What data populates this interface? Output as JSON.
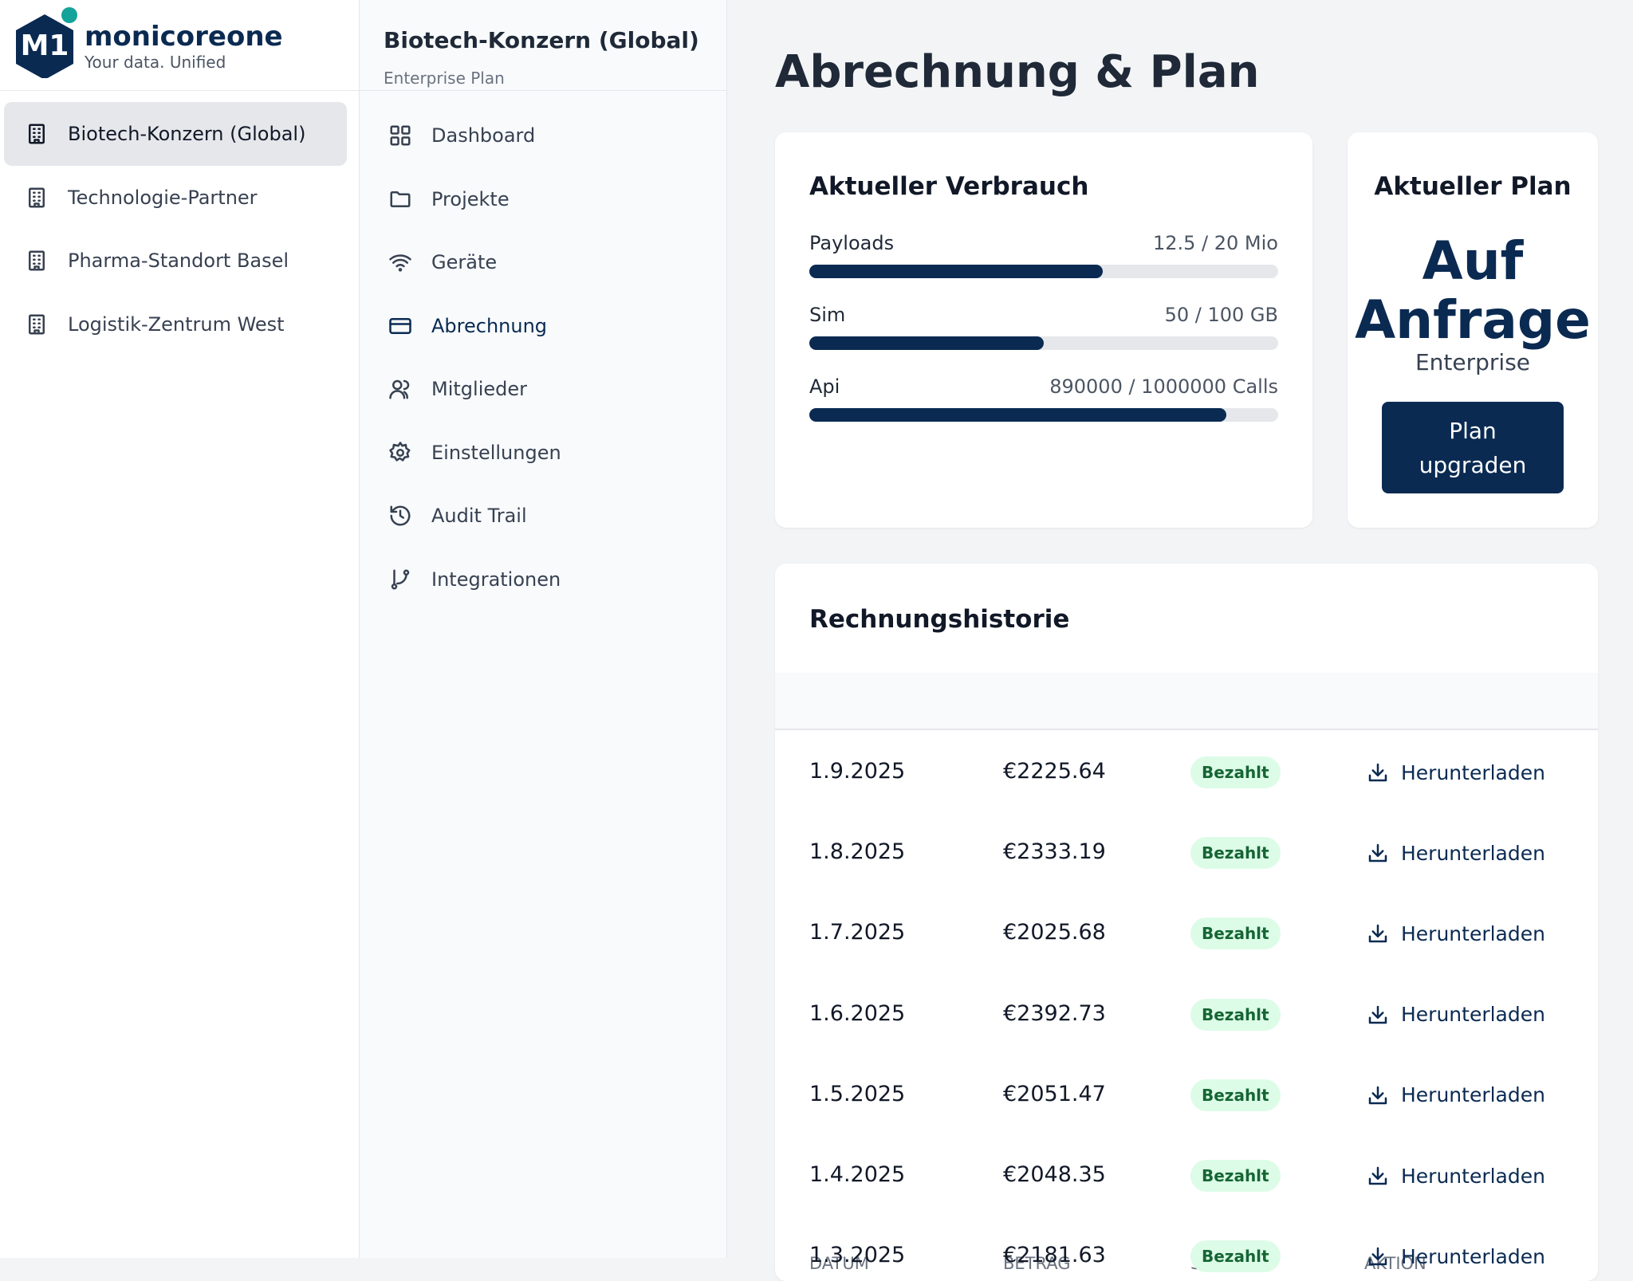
{
  "brand": {
    "logo": "M1",
    "name": "monicoreone",
    "tagline": "Your data. Unified"
  },
  "organizations": [
    "Biotech-Konzern (Global)",
    "Technologie-Partner",
    "Pharma-Standort Basel",
    "Logistik-Zentrum West"
  ],
  "workspace": {
    "name": "Biotech-Konzern (Global)",
    "plan": "Enterprise Plan"
  },
  "nav": [
    "Dashboard",
    "Projekte",
    "Geräte",
    "Abrechnung",
    "Mitglieder",
    "Einstellungen",
    "Audit Trail",
    "Integrationen"
  ],
  "page_title": "Abrechnung & Plan",
  "usage": {
    "title": "Aktueller Verbrauch",
    "items": [
      {
        "label": "Payloads",
        "value_label": "12.5 / 20 Mio",
        "used": 12.5,
        "limit": 20
      },
      {
        "label": "Sim",
        "value_label": "50 / 100 GB",
        "used": 50,
        "limit": 100
      },
      {
        "label": "Api",
        "value_label": "890000 / 1000000 Calls",
        "used": 890000,
        "limit": 1000000
      }
    ]
  },
  "plan": {
    "title": "Aktueller Plan",
    "name": "Auf Anfrage",
    "tier": "Enterprise",
    "button": "Plan upgraden"
  },
  "invoices": {
    "title": "Rechnungshistorie",
    "columns": [
      "DATUM",
      "BETRAG",
      "STATUS",
      "AKTION"
    ],
    "rows": [
      [
        "1.9.2025",
        "€2225.64",
        "Bezahlt",
        "Herunterladen"
      ],
      [
        "1.8.2025",
        "€2333.19",
        "Bezahlt",
        "Herunterladen"
      ],
      [
        "1.7.2025",
        "€2025.68",
        "Bezahlt",
        "Herunterladen"
      ],
      [
        "1.6.2025",
        "€2392.73",
        "Bezahlt",
        "Herunterladen"
      ],
      [
        "1.5.2025",
        "€2051.47",
        "Bezahlt",
        "Herunterladen"
      ],
      [
        "1.4.2025",
        "€2048.35",
        "Bezahlt",
        "Herunterladen"
      ],
      [
        "1.3.2025",
        "€2181.63",
        "Bezahlt",
        "Herunterladen"
      ]
    ]
  }
}
